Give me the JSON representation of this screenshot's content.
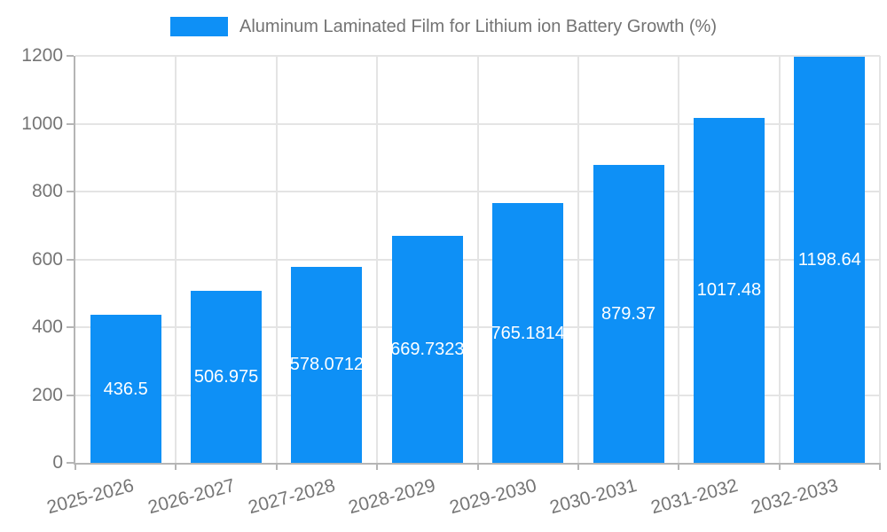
{
  "legend": {
    "series_label": "Aluminum Laminated Film for Lithium ion Battery Growth (%)"
  },
  "chart_data": {
    "type": "bar",
    "title": "Aluminum Laminated Film for Lithium ion Battery Growth (%)",
    "categories": [
      "2025-2026",
      "2026-2027",
      "2027-2028",
      "2028-2029",
      "2029-2030",
      "2030-2031",
      "2031-2032",
      "2032-2033"
    ],
    "values": [
      436.5,
      506.975,
      578.0712,
      669.7323,
      765.1814,
      879.37,
      1017.48,
      1198.64
    ],
    "bar_labels": [
      "436.5",
      "506.975",
      "578.0712",
      "669.7323",
      "765.1814",
      "879.37",
      "1017.48",
      "1198.64"
    ],
    "xlabel": "",
    "ylabel": "",
    "ylim": [
      0,
      1200
    ],
    "yticks": [
      0,
      200,
      400,
      600,
      800,
      1000,
      1200
    ],
    "grid": true,
    "legend_position": "top",
    "x_tick_rotation_deg": -15,
    "colors": {
      "bar": "#0E90F6",
      "bar_label_text": "#FFFFFF",
      "axis_line": "#B5B5B5",
      "gridline": "#E4E4E4",
      "tick_text": "#757575",
      "title_text": "#737373",
      "background": "#FFFFFF"
    }
  }
}
